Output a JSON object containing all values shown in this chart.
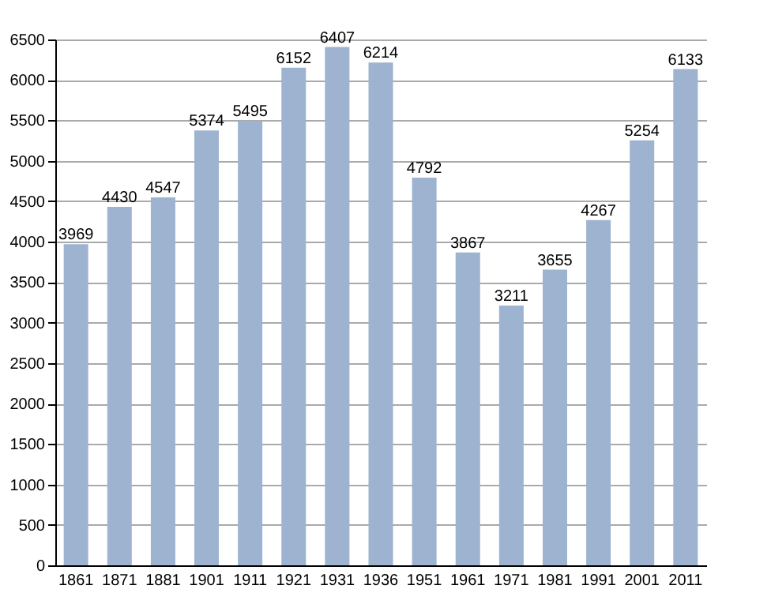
{
  "chart_data": {
    "type": "bar",
    "categories": [
      "1861",
      "1871",
      "1881",
      "1901",
      "1911",
      "1921",
      "1931",
      "1936",
      "1951",
      "1961",
      "1971",
      "1981",
      "1991",
      "2001",
      "2011"
    ],
    "values": [
      3969,
      4430,
      4547,
      5374,
      5495,
      6152,
      6407,
      6214,
      4792,
      3867,
      3211,
      3655,
      4267,
      5254,
      6133
    ],
    "color": "#9db3cf",
    "ylim": [
      0,
      6500
    ],
    "yticks": [
      0,
      500,
      1000,
      1500,
      2000,
      2500,
      3000,
      3500,
      4000,
      4500,
      5000,
      5500,
      6000,
      6500
    ],
    "grid": "y",
    "data_labels": true
  }
}
